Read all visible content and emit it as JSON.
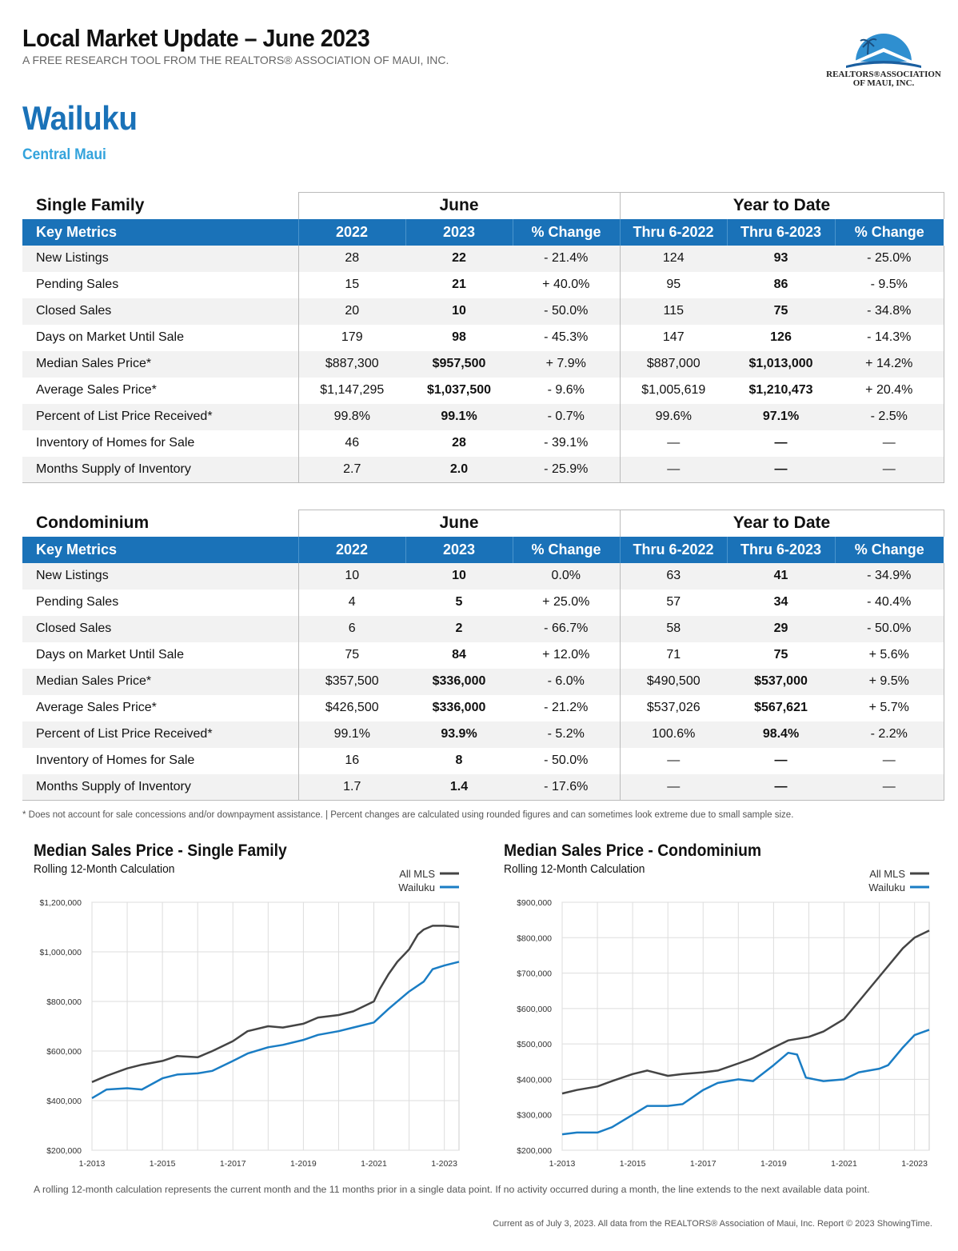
{
  "header": {
    "title": "Local Market Update – June 2023",
    "subtitle": "A FREE RESEARCH TOOL FROM THE REALTORS® ASSOCIATION OF MAUI, INC.",
    "area": "Wailuku",
    "region": "Central Maui",
    "logo_line1": "REALTORS®ASSOCIATION",
    "logo_line2": "OF MAUI, INC."
  },
  "columns": {
    "group_month": "June",
    "group_ytd": "Year to Date",
    "key_metrics": "Key Metrics",
    "c2022": "2022",
    "c2023": "2023",
    "pct": "% Change",
    "thru2022": "Thru 6-2022",
    "thru2023": "Thru 6-2023"
  },
  "single_family": {
    "title": "Single Family",
    "rows": [
      [
        "New Listings",
        "28",
        "22",
        "- 21.4%",
        "124",
        "93",
        "- 25.0%"
      ],
      [
        "Pending Sales",
        "15",
        "21",
        "+ 40.0%",
        "95",
        "86",
        "- 9.5%"
      ],
      [
        "Closed Sales",
        "20",
        "10",
        "- 50.0%",
        "115",
        "75",
        "- 34.8%"
      ],
      [
        "Days on Market Until Sale",
        "179",
        "98",
        "- 45.3%",
        "147",
        "126",
        "- 14.3%"
      ],
      [
        "Median Sales Price*",
        "$887,300",
        "$957,500",
        "+ 7.9%",
        "$887,000",
        "$1,013,000",
        "+ 14.2%"
      ],
      [
        "Average Sales Price*",
        "$1,147,295",
        "$1,037,500",
        "- 9.6%",
        "$1,005,619",
        "$1,210,473",
        "+ 20.4%"
      ],
      [
        "Percent of List Price Received*",
        "99.8%",
        "99.1%",
        "- 0.7%",
        "99.6%",
        "97.1%",
        "- 2.5%"
      ],
      [
        "Inventory of Homes for Sale",
        "46",
        "28",
        "- 39.1%",
        "—",
        "—",
        "—"
      ],
      [
        "Months Supply of Inventory",
        "2.7",
        "2.0",
        "- 25.9%",
        "—",
        "—",
        "—"
      ]
    ]
  },
  "condominium": {
    "title": "Condominium",
    "rows": [
      [
        "New Listings",
        "10",
        "10",
        "0.0%",
        "63",
        "41",
        "- 34.9%"
      ],
      [
        "Pending Sales",
        "4",
        "5",
        "+ 25.0%",
        "57",
        "34",
        "- 40.4%"
      ],
      [
        "Closed Sales",
        "6",
        "2",
        "- 66.7%",
        "58",
        "29",
        "- 50.0%"
      ],
      [
        "Days on Market Until Sale",
        "75",
        "84",
        "+ 12.0%",
        "71",
        "75",
        "+ 5.6%"
      ],
      [
        "Median Sales Price*",
        "$357,500",
        "$336,000",
        "- 6.0%",
        "$490,500",
        "$537,000",
        "+ 9.5%"
      ],
      [
        "Average Sales Price*",
        "$426,500",
        "$336,000",
        "- 21.2%",
        "$537,026",
        "$567,621",
        "+ 5.7%"
      ],
      [
        "Percent of List Price Received*",
        "99.1%",
        "93.9%",
        "- 5.2%",
        "100.6%",
        "98.4%",
        "- 2.2%"
      ],
      [
        "Inventory of Homes for Sale",
        "16",
        "8",
        "- 50.0%",
        "—",
        "—",
        "—"
      ],
      [
        "Months Supply of Inventory",
        "1.7",
        "1.4",
        "- 17.6%",
        "—",
        "—",
        "—"
      ]
    ]
  },
  "footnote": "* Does not account for sale concessions and/or downpayment assistance. | Percent changes are calculated using rounded figures and can sometimes look extreme due to small sample size.",
  "bottom_note": "A rolling 12-month calculation represents the current month and the 11 months prior in a single data point. If no activity occurred during a month, the line extends to the next available data point.",
  "copyright": "Current as of July 3, 2023. All data from the REALTORS® Association of Maui, Inc. Report © 2023 ShowingTime.",
  "chart_data": [
    {
      "type": "line",
      "title": "Median Sales Price - Single Family",
      "subtitle": "Rolling 12-Month Calculation",
      "x_ticks": [
        "1-2013",
        "1-2015",
        "1-2017",
        "1-2019",
        "1-2021",
        "1-2023"
      ],
      "y_ticks": [
        "$200,000",
        "$400,000",
        "$600,000",
        "$800,000",
        "$1,000,000",
        "$1,200,000"
      ],
      "ylim": [
        200000,
        1200000
      ],
      "x_range": [
        "2013-01",
        "2023-06"
      ],
      "grid": true,
      "legend_position": "top-right",
      "series": [
        {
          "name": "All MLS",
          "color": "#444444",
          "x": [
            "2013-01",
            "2013-06",
            "2014-01",
            "2014-06",
            "2015-01",
            "2015-06",
            "2016-01",
            "2016-06",
            "2017-01",
            "2017-06",
            "2018-01",
            "2018-06",
            "2019-01",
            "2019-06",
            "2020-01",
            "2020-06",
            "2021-01",
            "2021-03",
            "2021-06",
            "2021-09",
            "2022-01",
            "2022-04",
            "2022-06",
            "2022-09",
            "2023-01",
            "2023-06"
          ],
          "values": [
            475000,
            500000,
            530000,
            545000,
            560000,
            580000,
            575000,
            600000,
            640000,
            680000,
            700000,
            695000,
            710000,
            735000,
            745000,
            760000,
            800000,
            850000,
            910000,
            960000,
            1010000,
            1070000,
            1090000,
            1105000,
            1105000,
            1100000
          ]
        },
        {
          "name": "Wailuku",
          "color": "#1a7dc4",
          "x": [
            "2013-01",
            "2013-06",
            "2014-01",
            "2014-06",
            "2015-01",
            "2015-06",
            "2016-01",
            "2016-06",
            "2017-01",
            "2017-06",
            "2018-01",
            "2018-06",
            "2019-01",
            "2019-06",
            "2020-01",
            "2020-06",
            "2021-01",
            "2021-06",
            "2022-01",
            "2022-06",
            "2022-09",
            "2023-01",
            "2023-06"
          ],
          "values": [
            410000,
            445000,
            450000,
            445000,
            490000,
            505000,
            510000,
            520000,
            560000,
            590000,
            615000,
            625000,
            645000,
            665000,
            680000,
            695000,
            715000,
            770000,
            840000,
            880000,
            930000,
            945000,
            960000
          ]
        }
      ]
    },
    {
      "type": "line",
      "title": "Median Sales Price - Condominium",
      "subtitle": "Rolling 12-Month Calculation",
      "x_ticks": [
        "1-2013",
        "1-2015",
        "1-2017",
        "1-2019",
        "1-2021",
        "1-2023"
      ],
      "y_ticks": [
        "$200,000",
        "$300,000",
        "$400,000",
        "$500,000",
        "$600,000",
        "$700,000",
        "$800,000",
        "$900,000"
      ],
      "ylim": [
        200000,
        900000
      ],
      "x_range": [
        "2013-01",
        "2023-06"
      ],
      "grid": true,
      "legend_position": "top-right",
      "series": [
        {
          "name": "All MLS",
          "color": "#444444",
          "x": [
            "2013-01",
            "2013-06",
            "2014-01",
            "2014-06",
            "2015-01",
            "2015-06",
            "2016-01",
            "2016-06",
            "2017-01",
            "2017-06",
            "2018-01",
            "2018-06",
            "2019-01",
            "2019-06",
            "2020-01",
            "2020-06",
            "2021-01",
            "2021-06",
            "2022-01",
            "2022-06",
            "2022-09",
            "2023-01",
            "2023-06"
          ],
          "values": [
            360000,
            370000,
            380000,
            395000,
            415000,
            425000,
            410000,
            415000,
            420000,
            425000,
            445000,
            460000,
            490000,
            510000,
            520000,
            535000,
            570000,
            620000,
            690000,
            740000,
            770000,
            800000,
            820000
          ]
        },
        {
          "name": "Wailuku",
          "color": "#1a7dc4",
          "x": [
            "2013-01",
            "2013-06",
            "2014-01",
            "2014-06",
            "2015-01",
            "2015-06",
            "2016-01",
            "2016-06",
            "2017-01",
            "2017-06",
            "2018-01",
            "2018-06",
            "2019-01",
            "2019-06",
            "2019-09",
            "2019-12",
            "2020-06",
            "2021-01",
            "2021-06",
            "2022-01",
            "2022-04",
            "2022-09",
            "2023-01",
            "2023-06"
          ],
          "values": [
            245000,
            250000,
            250000,
            265000,
            300000,
            325000,
            325000,
            330000,
            370000,
            390000,
            400000,
            395000,
            440000,
            475000,
            470000,
            405000,
            395000,
            400000,
            420000,
            430000,
            440000,
            490000,
            525000,
            540000
          ]
        }
      ]
    }
  ]
}
